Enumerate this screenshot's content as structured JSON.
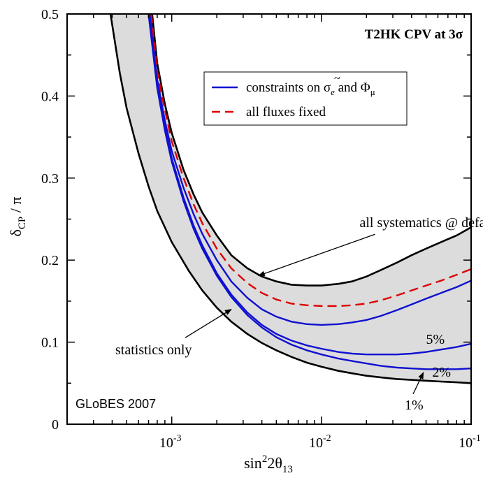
{
  "chart_data": {
    "type": "line",
    "title": "T2HK  CPV at 3σ",
    "xlabel": {
      "base": "sin",
      "sup": "2",
      "mid": "2θ",
      "sub": "13"
    },
    "ylabel": {
      "delta": "δ",
      "sub": "CP",
      "rest": " / π"
    },
    "x_scale": "log",
    "xlim": [
      0.0002,
      0.1
    ],
    "ylim": [
      0,
      0.5
    ],
    "x_ticks": [
      {
        "value": 0.001,
        "base": "10",
        "exp": "-3"
      },
      {
        "value": 0.01,
        "base": "10",
        "exp": "-2"
      },
      {
        "value": 0.1,
        "base": "10",
        "exp": "-1"
      }
    ],
    "y_ticks": [
      {
        "value": 0,
        "label": "0"
      },
      {
        "value": 0.1,
        "label": "0.1"
      },
      {
        "value": 0.2,
        "label": "0.2"
      },
      {
        "value": 0.3,
        "label": "0.3"
      },
      {
        "value": 0.4,
        "label": "0.4"
      },
      {
        "value": 0.5,
        "label": "0.5"
      }
    ],
    "band": {
      "fill": "#dcdcdc",
      "stroke": "#000000",
      "lower": {
        "x": [
          0.00039,
          0.00045,
          0.0005,
          0.0006,
          0.0007,
          0.0008,
          0.001,
          0.0013,
          0.0016,
          0.002,
          0.0025,
          0.0032,
          0.004,
          0.005,
          0.0063,
          0.008,
          0.01,
          0.013,
          0.016,
          0.02,
          0.025,
          0.032,
          0.04,
          0.05,
          0.063,
          0.08,
          0.1
        ],
        "y": [
          0.5,
          0.428,
          0.385,
          0.33,
          0.29,
          0.26,
          0.222,
          0.187,
          0.163,
          0.142,
          0.125,
          0.11,
          0.099,
          0.09,
          0.082,
          0.075,
          0.07,
          0.065,
          0.062,
          0.059,
          0.057,
          0.055,
          0.054,
          0.053,
          0.052,
          0.051,
          0.05
        ]
      },
      "upper": {
        "x": [
          0.00074,
          0.0008,
          0.0009,
          0.001,
          0.0012,
          0.0014,
          0.0016,
          0.002,
          0.0025,
          0.0032,
          0.004,
          0.005,
          0.0063,
          0.008,
          0.01,
          0.013,
          0.016,
          0.02,
          0.025,
          0.032,
          0.04,
          0.05,
          0.063,
          0.08,
          0.1
        ],
        "y": [
          0.5,
          0.44,
          0.39,
          0.355,
          0.31,
          0.28,
          0.258,
          0.23,
          0.206,
          0.19,
          0.18,
          0.174,
          0.17,
          0.169,
          0.169,
          0.171,
          0.174,
          0.18,
          0.188,
          0.197,
          0.206,
          0.214,
          0.222,
          0.23,
          0.24
        ]
      }
    },
    "series": [
      {
        "color": "#1010d0",
        "dash": "solid",
        "x": [
          0.00072,
          0.0008,
          0.0009,
          0.001,
          0.0012,
          0.0014,
          0.0016,
          0.002,
          0.0025,
          0.0032,
          0.004,
          0.005,
          0.0063,
          0.008,
          0.01,
          0.013,
          0.016,
          0.02,
          0.025,
          0.032,
          0.04,
          0.05,
          0.063,
          0.08,
          0.1
        ],
        "y": [
          0.5,
          0.42,
          0.37,
          0.333,
          0.288,
          0.256,
          0.232,
          0.2,
          0.174,
          0.154,
          0.14,
          0.131,
          0.125,
          0.122,
          0.121,
          0.122,
          0.124,
          0.127,
          0.132,
          0.139,
          0.146,
          0.153,
          0.16,
          0.167,
          0.175
        ]
      },
      {
        "color": "#dd0000",
        "dash": "dashed",
        "x": [
          0.00073,
          0.0008,
          0.0009,
          0.001,
          0.0012,
          0.0014,
          0.0016,
          0.002,
          0.0025,
          0.0032,
          0.004,
          0.005,
          0.0063,
          0.008,
          0.01,
          0.013,
          0.016,
          0.02,
          0.025,
          0.032,
          0.04,
          0.05,
          0.063,
          0.08,
          0.1
        ],
        "y": [
          0.5,
          0.43,
          0.383,
          0.345,
          0.3,
          0.268,
          0.245,
          0.214,
          0.19,
          0.172,
          0.16,
          0.152,
          0.147,
          0.145,
          0.144,
          0.144,
          0.145,
          0.147,
          0.151,
          0.157,
          0.163,
          0.169,
          0.175,
          0.182,
          0.189
        ]
      },
      {
        "color": "#1010d0",
        "dash": "solid",
        "x": [
          0.00071,
          0.0008,
          0.0009,
          0.001,
          0.0012,
          0.0014,
          0.0016,
          0.002,
          0.0025,
          0.0032,
          0.004,
          0.005,
          0.0063,
          0.008,
          0.01,
          0.013,
          0.016,
          0.02,
          0.025,
          0.032,
          0.04,
          0.05,
          0.063,
          0.08,
          0.1
        ],
        "y": [
          0.5,
          0.415,
          0.362,
          0.324,
          0.276,
          0.242,
          0.218,
          0.184,
          0.158,
          0.136,
          0.121,
          0.11,
          0.102,
          0.096,
          0.092,
          0.088,
          0.086,
          0.085,
          0.085,
          0.085,
          0.086,
          0.088,
          0.091,
          0.094,
          0.098
        ]
      },
      {
        "color": "#1010d0",
        "dash": "solid",
        "x": [
          0.0007,
          0.0008,
          0.0009,
          0.001,
          0.0012,
          0.0014,
          0.0016,
          0.002,
          0.0025,
          0.0032,
          0.004,
          0.005,
          0.0063,
          0.008,
          0.01,
          0.013,
          0.016,
          0.02,
          0.025,
          0.032,
          0.04,
          0.05,
          0.063,
          0.08,
          0.1
        ],
        "y": [
          0.5,
          0.41,
          0.358,
          0.32,
          0.272,
          0.238,
          0.214,
          0.181,
          0.155,
          0.133,
          0.118,
          0.106,
          0.097,
          0.09,
          0.085,
          0.08,
          0.077,
          0.074,
          0.071,
          0.069,
          0.068,
          0.067,
          0.067,
          0.067,
          0.068
        ]
      }
    ],
    "legend": {
      "placement": "top-right",
      "items": [
        {
          "pre": "constraints on ",
          "tilde": "~",
          "sym": "σ",
          "symsub": "e",
          "mid": " and Φ",
          "sub": "μ",
          "color": "#1010d0",
          "dash": "solid"
        },
        {
          "text": "all fluxes fixed",
          "color": "#dd0000",
          "dash": "dashed"
        }
      ]
    },
    "annotations": [
      {
        "text": "all systematics @ default",
        "tx": 0.018,
        "ty": 0.24,
        "ax": 0.0038,
        "ay": 0.181
      },
      {
        "text": "statistics only",
        "tx": 0.00042,
        "ty": 0.085,
        "ax": 0.0025,
        "ay": 0.14
      },
      {
        "text": "5%",
        "tx": 0.05,
        "ty": 0.098
      },
      {
        "text": "2%",
        "tx": 0.055,
        "ty": 0.058
      },
      {
        "text": "1%",
        "tx": 0.036,
        "ty": 0.018,
        "ax": 0.048,
        "ay": 0.063
      }
    ],
    "watermark": "GLoBES 2007",
    "grid": false
  }
}
